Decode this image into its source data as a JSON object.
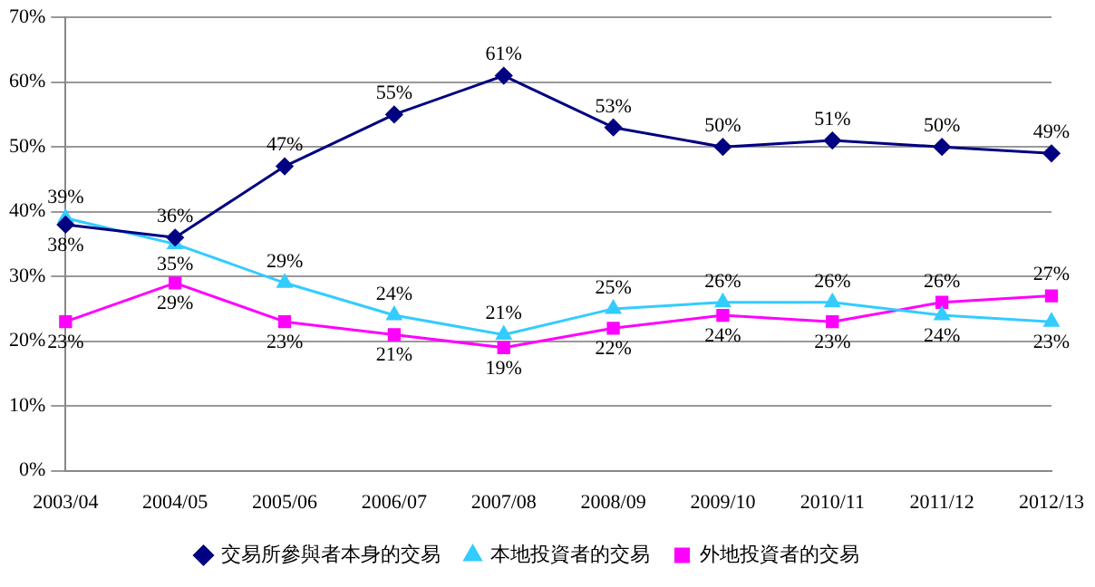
{
  "chart_data": {
    "type": "line",
    "categories": [
      "2003/04",
      "2004/05",
      "2005/06",
      "2006/07",
      "2007/08",
      "2008/09",
      "2009/10",
      "2010/11",
      "2011/12",
      "2012/13"
    ],
    "series": [
      {
        "name": "交易所參與者本身的交易",
        "color": "#000080",
        "marker": "diamond",
        "values": [
          38,
          36,
          47,
          55,
          61,
          53,
          50,
          51,
          50,
          49
        ],
        "value_labels": [
          "38%",
          "36%",
          "47%",
          "55%",
          "61%",
          "53%",
          "50%",
          "51%",
          "50%",
          "49%"
        ]
      },
      {
        "name": "本地投資者的交易",
        "color": "#33ccff",
        "marker": "triangle",
        "values": [
          39,
          35,
          29,
          24,
          21,
          25,
          26,
          26,
          24,
          23
        ],
        "value_labels": [
          "39%",
          "35%",
          "29%",
          "24%",
          "21%",
          "25%",
          "26%",
          "26%",
          "24%",
          "23%"
        ]
      },
      {
        "name": "外地投資者的交易",
        "color": "#ff00ff",
        "marker": "square",
        "values": [
          23,
          29,
          23,
          21,
          19,
          22,
          24,
          23,
          26,
          27
        ],
        "value_labels": [
          "23%",
          "29%",
          "23%",
          "21%",
          "19%",
          "22%",
          "24%",
          "23%",
          "26%",
          "27%"
        ]
      }
    ],
    "ylim": [
      0,
      70
    ],
    "yticks": [
      {
        "value": 0,
        "label": "0%"
      },
      {
        "value": 10,
        "label": "10%"
      },
      {
        "value": 20,
        "label": "20%"
      },
      {
        "value": 30,
        "label": "30%"
      },
      {
        "value": 40,
        "label": "40%"
      },
      {
        "value": 50,
        "label": "50%"
      },
      {
        "value": 60,
        "label": "60%"
      },
      {
        "value": 70,
        "label": "70%"
      }
    ],
    "grid": "y",
    "legend": "bottom",
    "line_style": "solid"
  }
}
